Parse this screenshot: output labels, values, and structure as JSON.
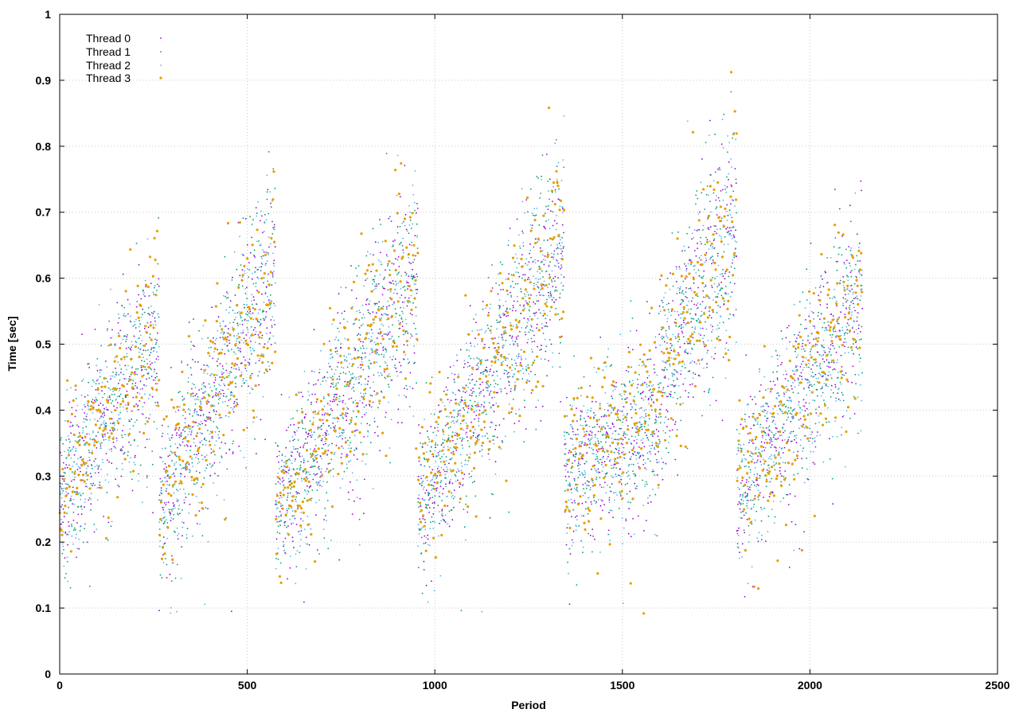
{
  "chart_data": {
    "type": "scatter",
    "title": "",
    "xlabel": "Period",
    "ylabel": "Time [sec]",
    "xlim": [
      0,
      2500
    ],
    "ylim": [
      0,
      1
    ],
    "xticks": [
      "0",
      "500",
      "1000",
      "1500",
      "2000",
      "2500"
    ],
    "yticks": [
      "0",
      "0.1",
      "0.2",
      "0.3",
      "0.4",
      "0.5",
      "0.6",
      "0.7",
      "0.8",
      "0.9",
      "1"
    ],
    "grid": true,
    "legend_position": "top-left",
    "point_count_per_series": 2140,
    "series": [
      {
        "name": "Thread 0",
        "color": "#9400d3",
        "marker": "dot"
      },
      {
        "name": "Thread 1",
        "color": "#009e73",
        "marker": "dot"
      },
      {
        "name": "Thread 2",
        "color": "#56b4e9",
        "marker": "dot"
      },
      {
        "name": "Thread 3",
        "color": "#e69f00",
        "marker": "large-dot"
      }
    ],
    "cycles": [
      {
        "x_start": 0,
        "x_end": 265,
        "y_start": 0.27,
        "y_end": 0.53
      },
      {
        "x_start": 265,
        "x_end": 575,
        "y_start": 0.25,
        "y_end": 0.62
      },
      {
        "x_start": 575,
        "x_end": 955,
        "y_start": 0.25,
        "y_end": 0.61
      },
      {
        "x_start": 955,
        "x_end": 1345,
        "y_start": 0.26,
        "y_end": 0.66
      },
      {
        "x_start": 1345,
        "x_end": 1600,
        "y_start": 0.3,
        "y_end": 0.4
      },
      {
        "x_start": 1600,
        "x_end": 1805,
        "y_start": 0.45,
        "y_end": 0.7
      },
      {
        "x_start": 1805,
        "x_end": 2140,
        "y_start": 0.27,
        "y_end": 0.58
      }
    ]
  }
}
